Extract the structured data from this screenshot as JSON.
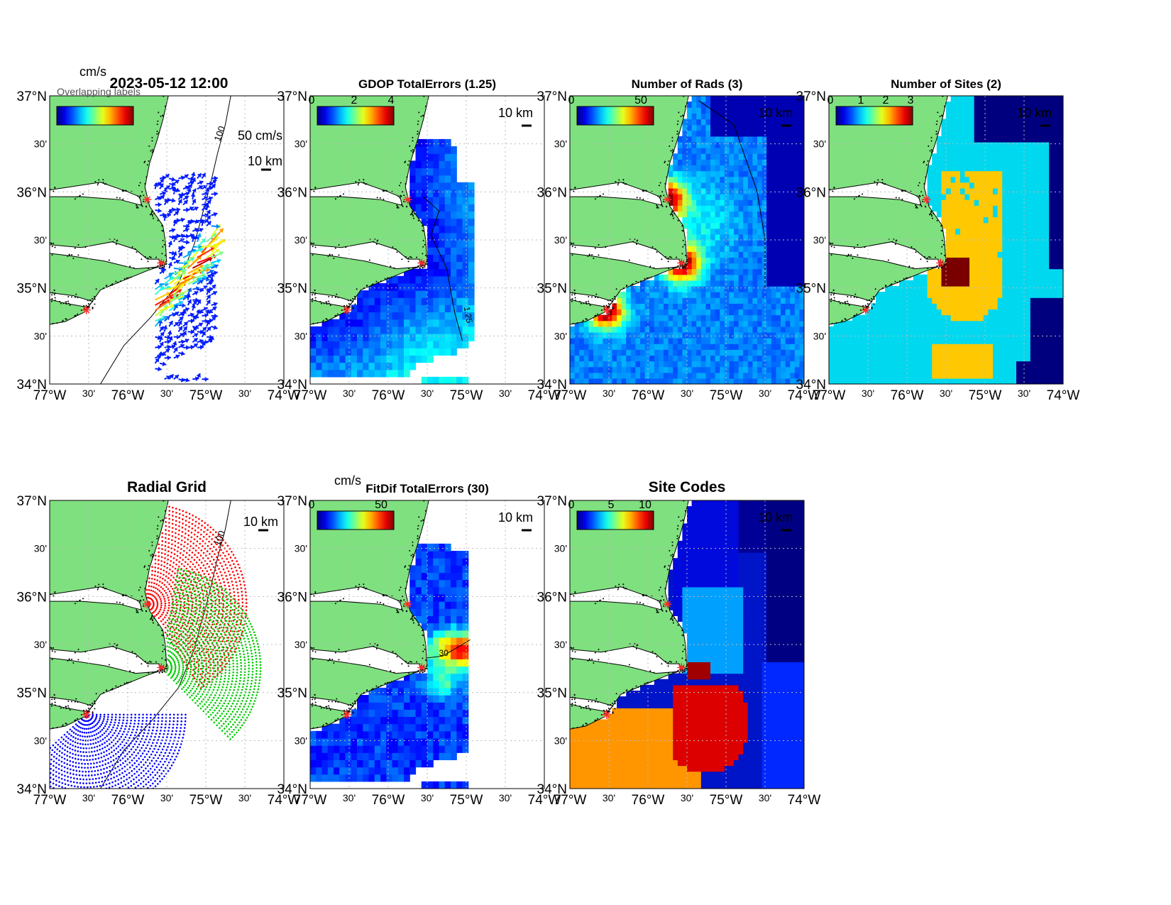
{
  "figure": {
    "timestamp": "2023-05-12 12:00",
    "overlap_garble": "Overlapping labels"
  },
  "axes": {
    "lat_labels": [
      "37°N",
      "30'",
      "36°N",
      "30'",
      "35°N",
      "30'",
      "34°N"
    ],
    "lon_labels": [
      "77°W",
      "30'",
      "76°W",
      "30'",
      "75°W",
      "30'",
      "74°W"
    ],
    "lat_range": [
      34,
      37
    ],
    "lon_range": [
      -77,
      -74
    ]
  },
  "scale_bar_label": "10 km",
  "contour_100_label": "100",
  "panels": [
    {
      "id": "currents",
      "title": "",
      "colorbar_unit": "cm/s",
      "colorbar_ticks": [],
      "vector_scale_label": "50 cm/s",
      "colormap": "jet",
      "contours": []
    },
    {
      "id": "gdop",
      "title": "GDOP TotalErrors (1.25)",
      "colorbar_unit": "",
      "colorbar_ticks": [
        "0",
        "2",
        "4"
      ],
      "colormap": "jet",
      "contours": [
        "1.25"
      ]
    },
    {
      "id": "rads",
      "title": "Number of Rads (3)",
      "colorbar_unit": "",
      "colorbar_ticks": [
        "0",
        "50"
      ],
      "colormap": "jet",
      "contours": [
        "3"
      ]
    },
    {
      "id": "sites",
      "title": "Number of Sites (2)",
      "colorbar_unit": "",
      "colorbar_ticks": [
        "0",
        "1",
        "2",
        "3"
      ],
      "colormap": "jet",
      "contours": [
        "2"
      ]
    },
    {
      "id": "radial",
      "title": "Radial Grid",
      "colorbar_unit": "",
      "colorbar_ticks": [],
      "colormap": "",
      "contours": []
    },
    {
      "id": "fitdif",
      "title": "FitDif TotalErrors (30)",
      "colorbar_unit": "cm/s",
      "colorbar_ticks": [
        "0",
        "50"
      ],
      "colormap": "jet",
      "contours": [
        "30"
      ]
    },
    {
      "id": "sitecodes",
      "title": "Site Codes",
      "colorbar_unit": "",
      "colorbar_ticks": [
        "0",
        "5",
        "10"
      ],
      "colormap": "jet",
      "contours": []
    }
  ],
  "radar_sites": [
    {
      "lon": -75.75,
      "lat": 35.92
    },
    {
      "lon": -75.57,
      "lat": 35.26
    },
    {
      "lon": -76.53,
      "lat": 34.77
    }
  ],
  "colors": {
    "land": "#7fe07f",
    "site_marker": "#ff2a2a",
    "grid_site_1": "#ff0000",
    "grid_site_2": "#00cc00",
    "grid_site_3": "#0000ff",
    "sites_1": "#00d8f0",
    "sites_2": "#ffc800",
    "sites_3": "#7a0000",
    "sites_bg": "#00007f"
  }
}
